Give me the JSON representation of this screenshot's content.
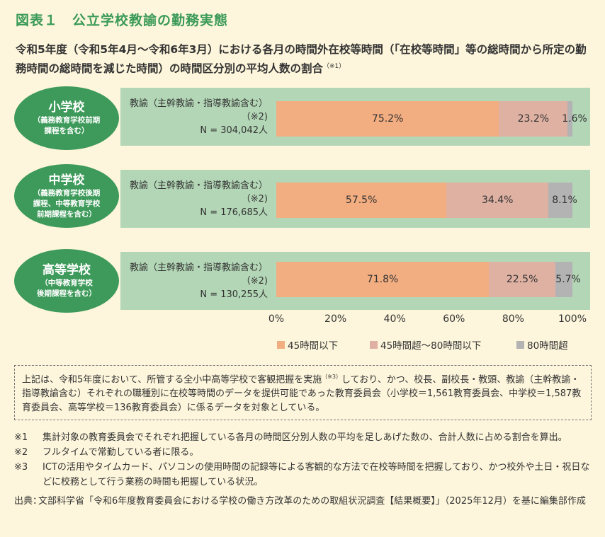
{
  "figure_title": "図表１　公立学校教諭の勤務実態",
  "subtitle": "令和5年度（令和5年4月～令和6年3月）における各月の時間外在校等時間（「在校等時間」等の総時間から所定の勤務時間の総時間を減じた時間）の時間区分別の平均人数の割合",
  "subtitle_note": "（※1）",
  "colors": {
    "band": "#b3d7b6",
    "oval": "#3d9a5a",
    "title": "#3a9a57",
    "le45": "#f2ad80",
    "mid": "#dfb1a2",
    "gt80": "#b3b3b3"
  },
  "rows": [
    {
      "school": "小学校",
      "school_sub": "（義務教育学校前期\n課程を含む）",
      "label_line1": "教諭（主幹教諭・指導教諭含む）",
      "label_line2": "（※2)",
      "label_line3": "N = 304,042人"
    },
    {
      "school": "中学校",
      "school_sub": "（義務教育学校後期\n課程、中等教育学校\n前期課程を含む）",
      "label_line1": "教諭（主幹教諭・指導教諭含む）",
      "label_line2": "（※2)",
      "label_line3": "N = 176,685人"
    },
    {
      "school": "高等学校",
      "school_sub": "（中等教育学校\n後期課程を含む）",
      "label_line1": "教諭（主幹教諭・指導教諭含む）",
      "label_line2": "（※2)",
      "label_line3": "N = 130,255人"
    }
  ],
  "chart_data": {
    "type": "bar",
    "orientation": "horizontal",
    "stacked": true,
    "categories": [
      "小学校",
      "中学校",
      "高等学校"
    ],
    "series": [
      {
        "name": "45時間以下",
        "values": [
          75.2,
          57.5,
          71.8
        ],
        "labels": [
          "75.2%",
          "57.5%",
          "71.8%"
        ]
      },
      {
        "name": "45時間超～80時間以下",
        "values": [
          23.2,
          34.4,
          22.5
        ],
        "labels": [
          "23.2%",
          "34.4%",
          "22.5%"
        ]
      },
      {
        "name": "80時間超",
        "values": [
          1.6,
          8.1,
          5.7
        ],
        "labels": [
          "1.6%",
          "8.1%",
          "5.7%"
        ]
      }
    ],
    "xlim": [
      0,
      100
    ],
    "x_ticks": [
      "0%",
      "20%",
      "40%",
      "60%",
      "80%",
      "100%"
    ],
    "legend_position": "bottom"
  },
  "note_box": {
    "text_a": "上記は、令和5年度において、所管する全小中高等学校で客観把握を実施",
    "sup": "（※3）",
    "text_b": "しており、かつ、校長、副校長・教頭、教諭（主幹教諭・指導教諭含む）それぞれの職種別に在校等時間のデータを提供可能であった教育委員会（小学校＝1,561教育委員会、中学校＝1,587教育委員会、高等学校＝136教育委員会）に係るデータを対象としている。"
  },
  "footnotes": [
    {
      "key": "※1",
      "text": "集計対象の教育委員会でそれぞれ把握している各月の時間区分別人数の平均を足しあげた数の、合計人数に占める割合を算出。"
    },
    {
      "key": "※2",
      "text": "フルタイムで常勤している者に限る。"
    },
    {
      "key": "※3",
      "text": "ICTの活用やタイムカード、パソコンの使用時間の記録等による客観的な方法で在校等時間を把握しており、かつ校外や土日・祝日などに校務として行う業務の時間も把握している状況。"
    }
  ],
  "source": {
    "key": "出典：",
    "text": "文部科学省「令和6年度教育委員会における学校の働き方改革のための取組状況調査【結果概要】」（2025年12月）を基に編集部作成"
  }
}
